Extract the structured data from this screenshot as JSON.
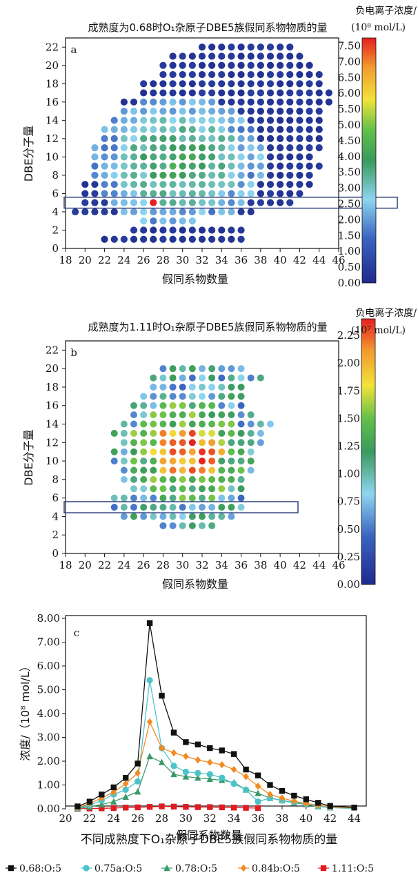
{
  "figure_caption": "不同成熟度下O₁杂原子DBE5族假同系物物质的量",
  "legend": [
    {
      "label": "0.68:O:5",
      "color": "#111111",
      "marker": "square"
    },
    {
      "label": "0.75a:O:5",
      "color": "#4cc3c8",
      "marker": "circle"
    },
    {
      "label": "0.78:O:5",
      "color": "#3a9a6a",
      "marker": "triangle"
    },
    {
      "label": "0.84b:O:5",
      "color": "#f28a22",
      "marker": "diamond"
    },
    {
      "label": "1.11:O:5",
      "color": "#e11b22",
      "marker": "square"
    }
  ],
  "chart_data": [
    {
      "type": "scatter",
      "panel_label": "a",
      "title": "成熟度为0.68时O₁杂原子DBE5族假同系物物质的量",
      "xlabel": "假同系物数量",
      "ylabel": "DBE分子量",
      "xlim": [
        18,
        46
      ],
      "ylim": [
        0,
        23
      ],
      "xticks": [
        18,
        20,
        22,
        24,
        26,
        28,
        30,
        32,
        34,
        36,
        38,
        40,
        42,
        44,
        46
      ],
      "yticks": [
        0,
        2,
        4,
        6,
        8,
        10,
        12,
        14,
        16,
        18,
        20,
        22
      ],
      "highlight_y": [
        4.4,
        5.6
      ],
      "colorbar": {
        "title": "负电离子浓度/",
        "unit": "(10⁸ mol/L)",
        "range": [
          0,
          7.75
        ],
        "ticks": [
          "0.00",
          "0.50",
          "1.00",
          "1.50",
          "2.00",
          "2.50",
          "3.00",
          "3.50",
          "4.00",
          "4.50",
          "5.00",
          "5.50",
          "6.00",
          "6.50",
          "7.00",
          "7.50"
        ]
      },
      "rows": [
        {
          "y": 22,
          "x_range": [
            32,
            41
          ]
        },
        {
          "y": 21,
          "x_range": [
            29,
            42
          ]
        },
        {
          "y": 20,
          "x_range": [
            28,
            43
          ]
        },
        {
          "y": 19,
          "x_range": [
            28,
            44
          ]
        },
        {
          "y": 18,
          "x_range": [
            26,
            44
          ]
        },
        {
          "y": 17,
          "x_range": [
            26,
            45
          ]
        },
        {
          "y": 16,
          "x_range": [
            24,
            45
          ]
        },
        {
          "y": 15,
          "x_range": [
            24,
            44
          ]
        },
        {
          "y": 14,
          "x_range": [
            23,
            44
          ]
        },
        {
          "y": 13,
          "x_range": [
            22,
            44
          ]
        },
        {
          "y": 12,
          "x_range": [
            22,
            44
          ]
        },
        {
          "y": 11,
          "x_range": [
            21,
            44
          ]
        },
        {
          "y": 10,
          "x_range": [
            21,
            43
          ]
        },
        {
          "y": 9,
          "x_range": [
            21,
            44
          ]
        },
        {
          "y": 8,
          "x_range": [
            21,
            43
          ]
        },
        {
          "y": 7,
          "x_range": [
            20,
            43
          ]
        },
        {
          "y": 6,
          "x_range": [
            20,
            42
          ]
        },
        {
          "y": 5,
          "x_range": [
            20,
            41
          ]
        },
        {
          "y": 4,
          "x_range": [
            19,
            37
          ]
        },
        {
          "y": 3,
          "x_range": [
            26,
            31
          ]
        },
        {
          "y": 2,
          "x_range": [
            25,
            36
          ]
        },
        {
          "y": 1,
          "x_range": [
            22,
            36
          ]
        }
      ],
      "peak": {
        "x": 27,
        "y": 5,
        "value": 7.8
      }
    },
    {
      "type": "scatter",
      "panel_label": "b",
      "title": "成熟度为1.11时O₁杂原子DBE5族假同系物物质的量",
      "xlabel": "假同系物数量",
      "ylabel": "DBE分子量",
      "xlim": [
        18,
        46
      ],
      "ylim": [
        0,
        23
      ],
      "xticks": [
        18,
        20,
        22,
        24,
        26,
        28,
        30,
        32,
        34,
        36,
        38,
        40,
        42,
        44,
        46
      ],
      "yticks": [
        0,
        2,
        4,
        6,
        8,
        10,
        12,
        14,
        16,
        18,
        20,
        22
      ],
      "highlight_y": [
        4.4,
        5.6
      ],
      "colorbar": {
        "title": "负电离子浓度/",
        "unit": "(10⁷ mol/L)",
        "range": [
          0,
          2.4
        ],
        "ticks": [
          "0.00",
          "0.25",
          "0.50",
          "0.75",
          "1.00",
          "1.25",
          "1.50",
          "1.75",
          "2.00",
          "2.25"
        ]
      },
      "rows": [
        {
          "y": 20,
          "x_range": [
            28,
            36
          ]
        },
        {
          "y": 19,
          "x_range": [
            27,
            38
          ]
        },
        {
          "y": 18,
          "x_range": [
            27,
            36
          ]
        },
        {
          "y": 17,
          "x_range": [
            26,
            36
          ]
        },
        {
          "y": 16,
          "x_range": [
            25,
            36
          ]
        },
        {
          "y": 15,
          "x_range": [
            25,
            37
          ]
        },
        {
          "y": 14,
          "x_range": [
            24,
            39
          ]
        },
        {
          "y": 13,
          "x_range": [
            23,
            38
          ]
        },
        {
          "y": 12,
          "x_range": [
            24,
            38
          ]
        },
        {
          "y": 11,
          "x_range": [
            23,
            37
          ]
        },
        {
          "y": 10,
          "x_range": [
            23,
            37
          ]
        },
        {
          "y": 9,
          "x_range": [
            24,
            37
          ]
        },
        {
          "y": 8,
          "x_range": [
            24,
            36
          ]
        },
        {
          "y": 7,
          "x_range": [
            25,
            36
          ]
        },
        {
          "y": 6,
          "x_range": [
            23,
            36
          ]
        },
        {
          "y": 5,
          "x_range": [
            23,
            36
          ]
        },
        {
          "y": 4,
          "x_range": [
            24,
            35
          ]
        },
        {
          "y": 3,
          "x_range": [
            28,
            33
          ]
        }
      ],
      "peak": {
        "x": 29,
        "y": 11,
        "value": 2.3
      }
    },
    {
      "type": "line",
      "panel_label": "c",
      "xlabel": "假同系物数量",
      "ylabel": "浓度/（10⁸ mol/L）",
      "xlim": [
        20,
        45
      ],
      "ylim": [
        0,
        8
      ],
      "xticks": [
        20,
        22,
        24,
        26,
        28,
        30,
        32,
        34,
        36,
        38,
        40,
        42,
        44
      ],
      "yticks": [
        "0.00",
        "1.00",
        "2.00",
        "3.00",
        "4.00",
        "5.00",
        "6.00",
        "7.00",
        "8.00"
      ],
      "x": [
        21,
        22,
        23,
        24,
        25,
        26,
        27,
        28,
        29,
        30,
        31,
        32,
        33,
        34,
        35,
        36,
        37,
        38,
        39,
        40,
        41,
        42,
        44
      ],
      "series": [
        {
          "name": "0.68:O:5",
          "values": [
            0.1,
            0.3,
            0.6,
            0.9,
            1.3,
            1.9,
            7.8,
            4.75,
            3.2,
            2.8,
            2.7,
            2.55,
            2.45,
            2.3,
            1.65,
            1.4,
            1.0,
            0.75,
            0.55,
            0.4,
            0.25,
            0.12,
            0.05
          ]
        },
        {
          "name": "0.75a:O:5",
          "values": [
            0.03,
            0.15,
            0.35,
            0.6,
            0.8,
            1.15,
            5.4,
            2.55,
            1.8,
            1.55,
            1.5,
            1.45,
            1.3,
            1.05,
            0.8,
            0.3,
            0.45,
            0.35,
            0.28,
            0.2,
            0.12,
            0.06,
            0.03
          ]
        },
        {
          "name": "0.78:O:5",
          "values": [
            0.02,
            0.08,
            0.18,
            0.3,
            0.5,
            0.72,
            2.2,
            1.95,
            1.45,
            1.35,
            1.3,
            1.25,
            1.2,
            1.1,
            0.8,
            0.65,
            0.45,
            0.35,
            0.25,
            0.18,
            0.1,
            0.05,
            0.02
          ]
        },
        {
          "name": "0.84b:O:5",
          "values": [
            0.05,
            0.22,
            0.45,
            0.7,
            1.05,
            1.5,
            3.65,
            2.55,
            2.35,
            2.2,
            2.05,
            1.95,
            1.85,
            1.65,
            1.35,
            0.95,
            0.6,
            0.45,
            0.32,
            0.22,
            0.15,
            0.08,
            0.04
          ]
        },
        {
          "name": "1.11:O:5",
          "values": [
            0.0,
            0.01,
            0.02,
            0.03,
            0.05,
            0.06,
            0.08,
            0.1,
            0.09,
            0.08,
            0.07,
            0.07,
            0.06,
            0.05,
            0.04,
            0.03,
            null,
            null,
            null,
            null,
            null,
            null,
            null
          ]
        }
      ]
    }
  ]
}
